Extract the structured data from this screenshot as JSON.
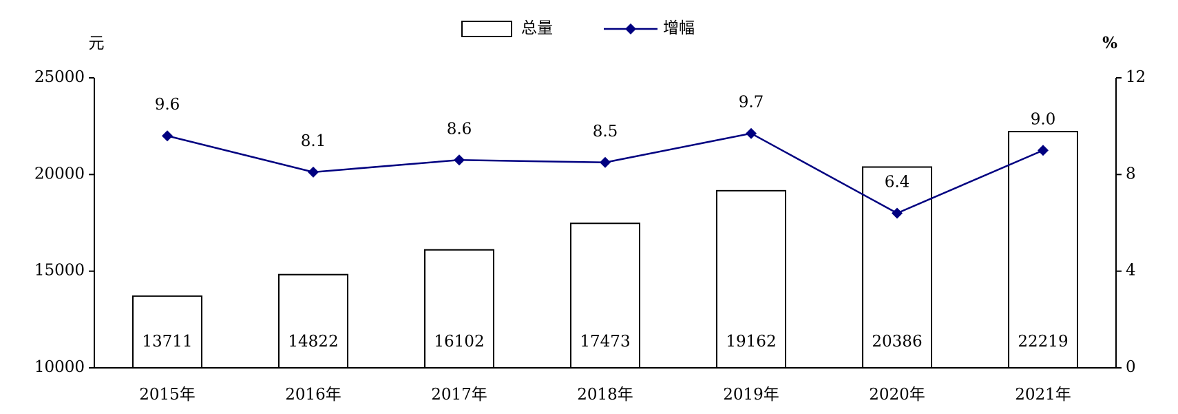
{
  "chart_data": {
    "type": "bar",
    "y_label": "元",
    "y2_label": "%",
    "categories": [
      "2015年",
      "2016年",
      "2017年",
      "2018年",
      "2019年",
      "2020年",
      "2021年"
    ],
    "series": [
      {
        "name": "总量",
        "type": "bar",
        "color": "#ffffff",
        "edge_color": "#000000",
        "values": [
          13711,
          14822,
          16102,
          17473,
          19162,
          20386,
          22219
        ]
      },
      {
        "name": "增幅",
        "type": "line",
        "axis": "y2",
        "color": "#000080",
        "values": [
          9.6,
          8.1,
          8.6,
          8.5,
          9.7,
          6.4,
          9.0
        ],
        "value_labels": [
          "9.6",
          "8.1",
          "8.6",
          "8.5",
          "9.7",
          "6.4",
          "9.0"
        ]
      }
    ],
    "ylim": [
      10000,
      25000
    ],
    "yticks": [
      10000,
      15000,
      20000,
      25000
    ],
    "y2lim": [
      0,
      12
    ],
    "y2ticks": [
      0,
      4,
      8,
      12
    ],
    "grid": false,
    "legend": "top"
  }
}
